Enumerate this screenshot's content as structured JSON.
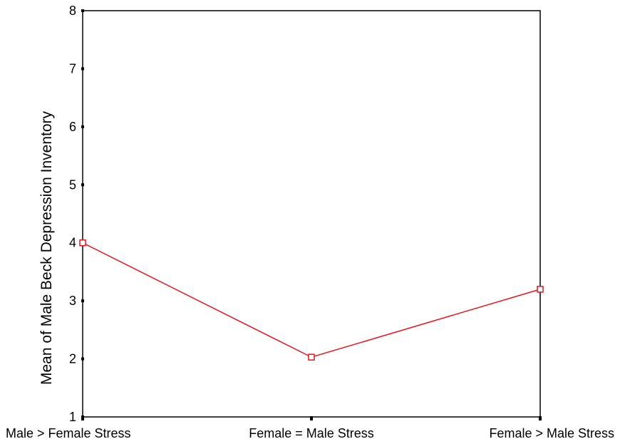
{
  "chart_data": {
    "type": "line",
    "title": "",
    "xlabel": "",
    "ylabel": "Mean of Male Beck Depression Inventory",
    "categories": [
      "Male > Female Stress",
      "Female = Male Stress",
      "Female > Male Stress"
    ],
    "series": [
      {
        "values": [
          4.0,
          2.03,
          3.2
        ],
        "color": "#e8141e",
        "marker": "open-square"
      }
    ],
    "ylim": [
      1,
      8
    ],
    "yticks": [
      "1",
      "2",
      "3",
      "4",
      "5",
      "6",
      "7",
      "8"
    ],
    "grid": false,
    "legend": "none"
  }
}
